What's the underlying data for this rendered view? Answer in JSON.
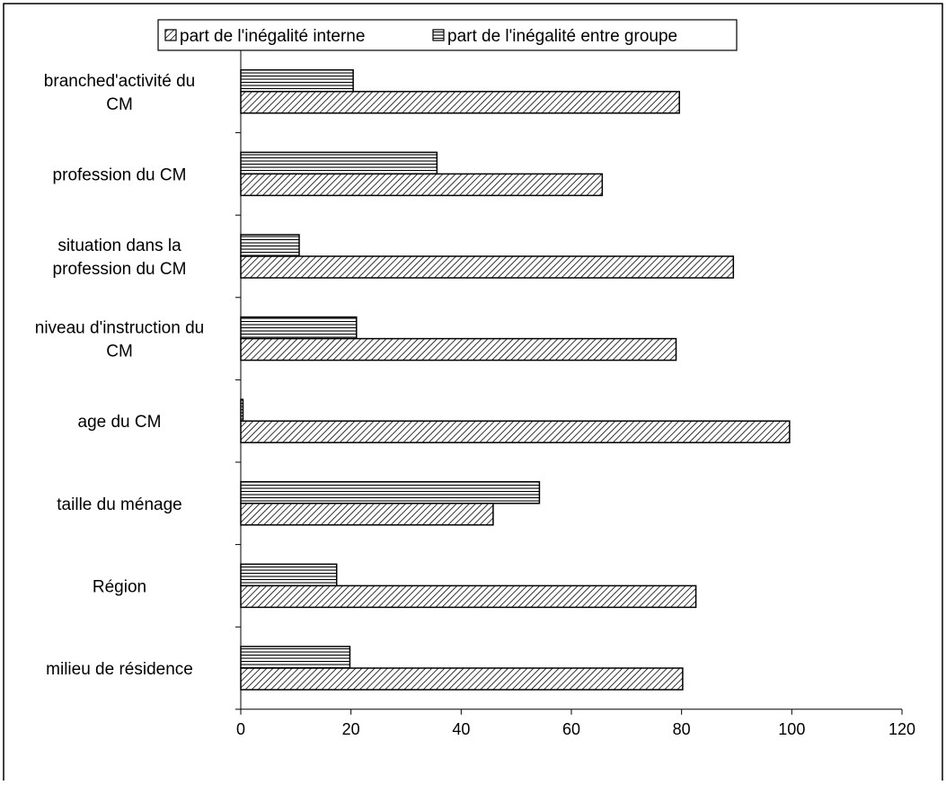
{
  "chart_data": {
    "type": "bar",
    "orientation": "horizontal",
    "title": "",
    "xlabel": "",
    "ylabel": "",
    "xlim": [
      0,
      120
    ],
    "x_ticks": [
      "0",
      "20",
      "40",
      "60",
      "80",
      "100",
      "120"
    ],
    "grid": false,
    "legend_position": "top",
    "categories": [
      [
        "branched'activité du",
        "CM"
      ],
      [
        "profession du CM"
      ],
      [
        "situation dans la",
        "profession du CM"
      ],
      [
        "niveau d'instruction du",
        "CM"
      ],
      [
        "age du CM"
      ],
      [
        "taille du ménage"
      ],
      [
        "Région"
      ],
      [
        "milieu de résidence"
      ]
    ],
    "series": [
      {
        "name": "part de l'inégalité interne",
        "pattern": "diagonal-hatch",
        "values": [
          79.6,
          65.6,
          89.4,
          79.0,
          99.6,
          45.8,
          82.6,
          80.2
        ]
      },
      {
        "name": "part de l'inégalité entre groupe",
        "pattern": "horizontal-hatch",
        "values": [
          20.4,
          35.6,
          10.6,
          21.0,
          0.4,
          54.2,
          17.4,
          19.8
        ]
      }
    ]
  }
}
